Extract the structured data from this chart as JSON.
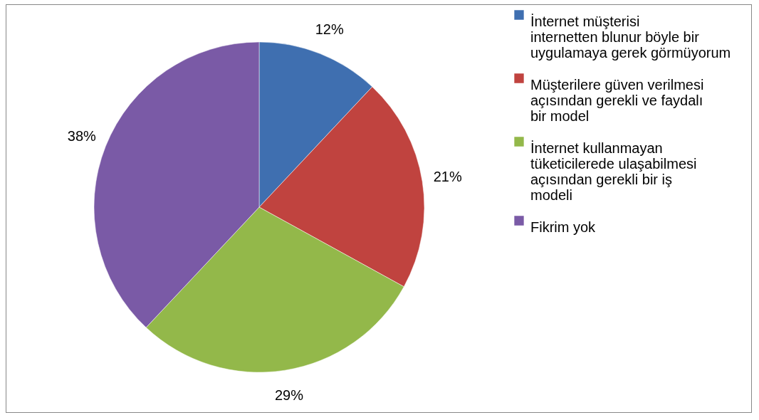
{
  "chart_data": {
    "type": "pie",
    "categories": [
      "İnternet müşterisi internetten blunur böyle bir uygulamaya gerek görmüyorum",
      "Müşterilere güven verilmesi açısından gerekli ve faydalı bir model",
      "İnternet kullanmayan tüketicilerede ulaşabilmesi açısından gerekli bir iş modeli",
      "Fikrim yok"
    ],
    "values": [
      12,
      21,
      29,
      38
    ],
    "value_labels": [
      "12%",
      "21%",
      "29%",
      "38%"
    ],
    "colors": [
      "#3f6fb0",
      "#c0433f",
      "#93b84a",
      "#7a5aa6"
    ],
    "legend": "right"
  }
}
